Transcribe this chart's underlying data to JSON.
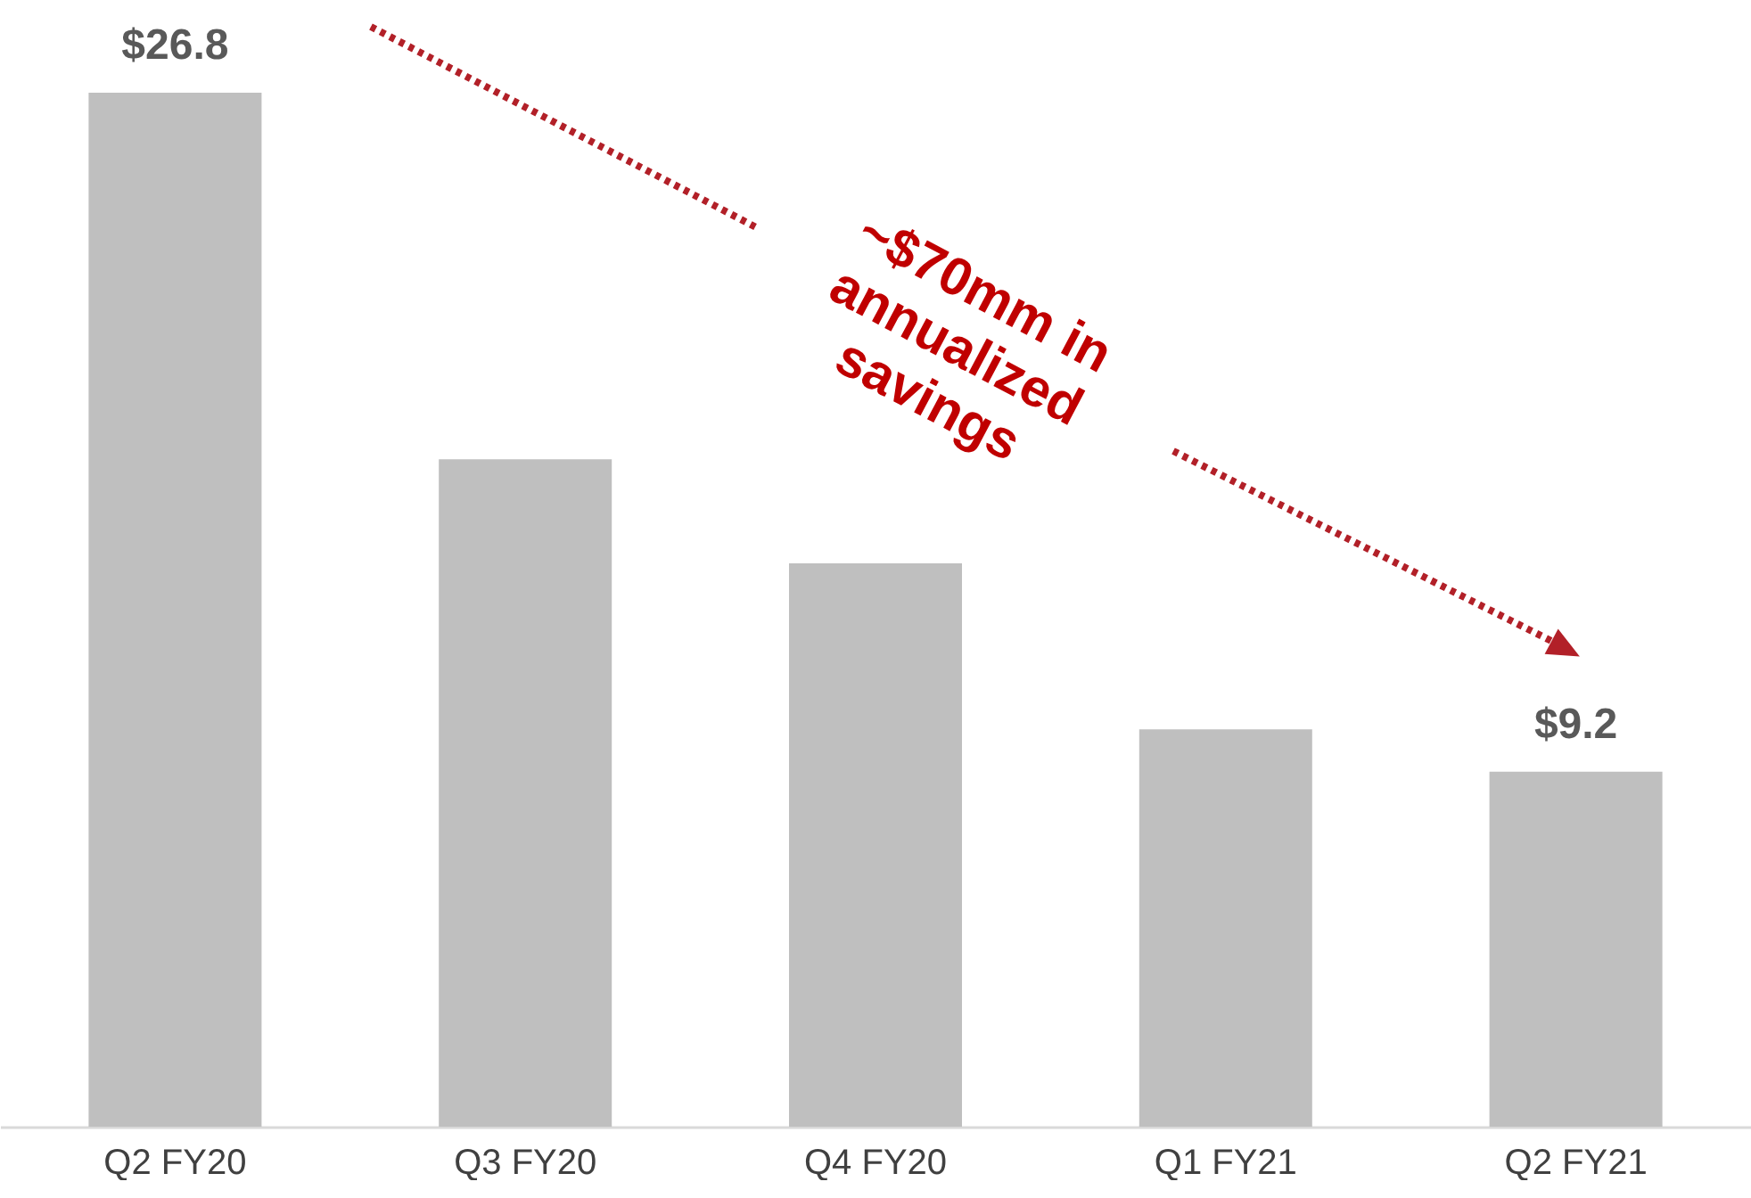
{
  "chart_data": {
    "type": "bar",
    "categories": [
      "Q2 FY20",
      "Q3 FY20",
      "Q4 FY20",
      "Q1 FY21",
      "Q2 FY21"
    ],
    "values": [
      26.8,
      17.3,
      14.6,
      10.3,
      9.2
    ],
    "value_labels": [
      "$26.8",
      null,
      null,
      null,
      "$9.2"
    ],
    "color": "#bfbfbf",
    "annotations": [
      "~$70mm in\nannualized\nsavings"
    ]
  }
}
